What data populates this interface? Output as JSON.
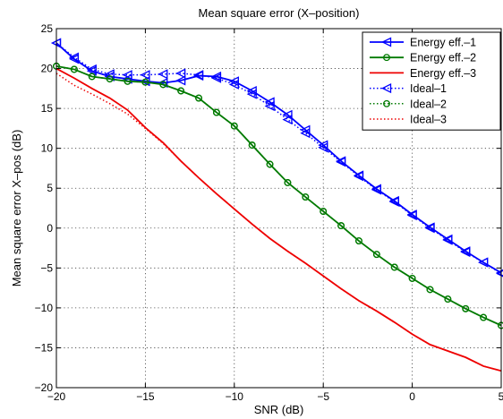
{
  "chart_data": {
    "type": "line",
    "title": "Mean square error (X–position)",
    "xlabel": "SNR (dB)",
    "ylabel": "Mean square error X–pos (dB)",
    "xlim": [
      -20,
      5
    ],
    "ylim": [
      -20,
      25
    ],
    "xticks": [
      -20,
      -15,
      -10,
      -5,
      0,
      5
    ],
    "xtick_labels": [
      "−20",
      "−15",
      "−10",
      "−5",
      "0",
      "5"
    ],
    "yticks": [
      -20,
      -15,
      -10,
      -5,
      0,
      5,
      10,
      15,
      20,
      25
    ],
    "ytick_labels": [
      "−20",
      "−15",
      "−10",
      "−5",
      "0",
      "5",
      "10",
      "15",
      "20",
      "25"
    ],
    "grid": true,
    "legend_position": "top-right",
    "series": [
      {
        "name": "Energy eff.–1",
        "color": "#0000ff",
        "line": "solid",
        "marker": "triangle-left",
        "x": [
          -20,
          -19,
          -18,
          -17,
          -16,
          -15,
          -14,
          -13,
          -12,
          -11,
          -10,
          -9,
          -8,
          -7,
          -6,
          -5,
          -4,
          -3,
          -2,
          -1,
          0,
          1,
          2,
          3,
          4,
          5
        ],
        "y": [
          23.2,
          21.2,
          19.7,
          19.0,
          18.7,
          18.4,
          18.2,
          18.5,
          19.1,
          19.0,
          18.4,
          17.2,
          15.8,
          14.2,
          12.3,
          10.4,
          8.4,
          6.6,
          4.9,
          3.4,
          1.7,
          0.1,
          -1.4,
          -2.9,
          -4.3,
          -5.6
        ]
      },
      {
        "name": "Energy eff.–2",
        "color": "#007a00",
        "line": "solid",
        "marker": "circle",
        "x": [
          -20,
          -19,
          -18,
          -17,
          -16,
          -15,
          -14,
          -13,
          -12,
          -11,
          -10,
          -9,
          -8,
          -7,
          -6,
          -5,
          -4,
          -3,
          -2,
          -1,
          0,
          1,
          2,
          3,
          4,
          5
        ],
        "y": [
          20.3,
          19.9,
          19.0,
          18.7,
          18.4,
          18.3,
          18.0,
          17.2,
          16.3,
          14.5,
          12.8,
          10.4,
          8.0,
          5.7,
          3.9,
          2.1,
          0.3,
          -1.6,
          -3.3,
          -4.9,
          -6.3,
          -7.7,
          -8.9,
          -10.1,
          -11.2,
          -12.2
        ]
      },
      {
        "name": "Energy eff.–3",
        "color": "#ee0000",
        "line": "solid",
        "marker": "none",
        "x": [
          -20,
          -19,
          -18,
          -17,
          -16,
          -15,
          -14,
          -13,
          -12,
          -11,
          -10,
          -9,
          -8,
          -7,
          -6,
          -5,
          -4,
          -3,
          -2,
          -1,
          0,
          1,
          2,
          3,
          4,
          5
        ],
        "y": [
          20.0,
          18.8,
          17.5,
          16.3,
          14.8,
          12.6,
          10.7,
          8.4,
          6.3,
          4.3,
          2.4,
          0.5,
          -1.3,
          -2.9,
          -4.4,
          -6.0,
          -7.6,
          -9.1,
          -10.4,
          -11.8,
          -13.3,
          -14.6,
          -15.4,
          -16.2,
          -17.3,
          -17.9
        ]
      },
      {
        "name": "Ideal–1",
        "color": "#0000ff",
        "line": "dotted",
        "marker": "triangle-left",
        "x": [
          -20,
          -19,
          -18,
          -17,
          -16,
          -15,
          -14,
          -13,
          -12,
          -11,
          -10,
          -9,
          -8,
          -7,
          -6,
          -5,
          -4,
          -3,
          -2,
          -1,
          0,
          1,
          2,
          3,
          4,
          5
        ],
        "y": [
          23.2,
          21.4,
          19.9,
          19.3,
          19.2,
          19.2,
          19.3,
          19.4,
          19.2,
          18.8,
          18.0,
          16.8,
          15.3,
          13.6,
          11.9,
          10.1,
          8.3,
          6.5,
          4.8,
          3.3,
          1.6,
          0.0,
          -1.5,
          -3.0,
          -4.3,
          -5.7
        ]
      },
      {
        "name": "Ideal–2",
        "color": "#007a00",
        "line": "dotted",
        "marker": "circle",
        "x": [
          -20,
          -19,
          -18,
          -17,
          -16,
          -15,
          -14,
          -13,
          -12,
          -11,
          -10,
          -9,
          -8,
          -7,
          -6,
          -5,
          -4,
          -3,
          -2,
          -1,
          0,
          1,
          2,
          3,
          4,
          5
        ],
        "y": [
          20.3,
          19.9,
          19.0,
          18.7,
          18.4,
          18.3,
          18.0,
          17.2,
          16.3,
          14.5,
          12.8,
          10.4,
          8.0,
          5.7,
          3.9,
          2.1,
          0.3,
          -1.6,
          -3.3,
          -4.9,
          -6.3,
          -7.7,
          -8.9,
          -10.1,
          -11.2,
          -12.2
        ]
      },
      {
        "name": "Ideal–3",
        "color": "#ee0000",
        "line": "dotted",
        "marker": "none",
        "x": [
          -20,
          -19,
          -18,
          -17,
          -16,
          -15,
          -14,
          -13,
          -12,
          -11,
          -10,
          -9,
          -8,
          -7,
          -6,
          -5,
          -4,
          -3,
          -2,
          -1,
          0,
          1,
          2,
          3,
          4,
          5
        ],
        "y": [
          19.4,
          17.9,
          16.8,
          15.6,
          14.3,
          12.5,
          10.6,
          8.4,
          6.3,
          4.3,
          2.4,
          0.5,
          -1.3,
          -2.9,
          -4.4,
          -6.0,
          -7.6,
          -9.1,
          -10.4,
          -11.8,
          -13.3,
          -14.6,
          -15.4,
          -16.2,
          -17.3,
          -17.9
        ]
      }
    ]
  }
}
